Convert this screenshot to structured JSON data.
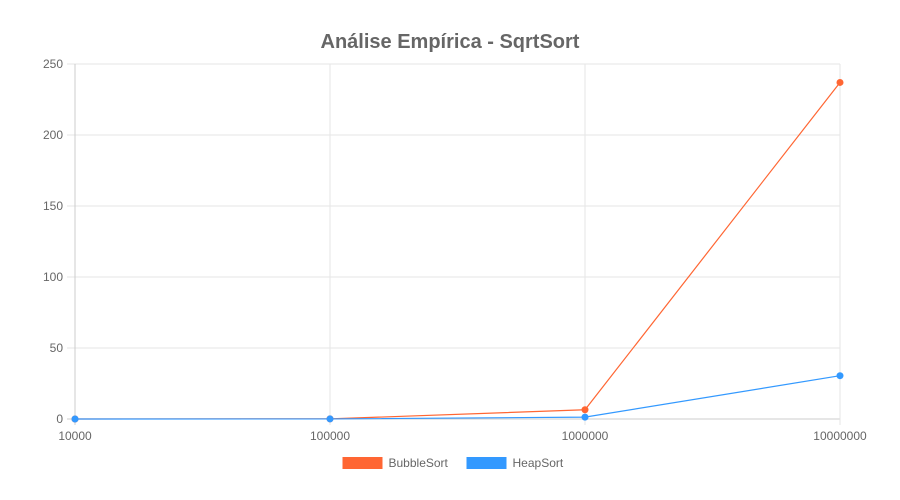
{
  "chart_data": {
    "type": "line",
    "title": "Análise Empírica - SqrtSort",
    "categories": [
      "10000",
      "100000",
      "1000000",
      "10000000"
    ],
    "series": [
      {
        "name": "BubbleSort",
        "color": "#ff6633",
        "values": [
          0.02,
          0.1,
          6.5,
          237
        ]
      },
      {
        "name": "HeapSort",
        "color": "#3399ff",
        "values": [
          0.01,
          0.05,
          1.3,
          30.5
        ]
      }
    ],
    "ylim": [
      0,
      250
    ],
    "yticks": [
      "0",
      "50",
      "100",
      "150",
      "200",
      "250"
    ],
    "grid": true,
    "legend": "bottom"
  }
}
